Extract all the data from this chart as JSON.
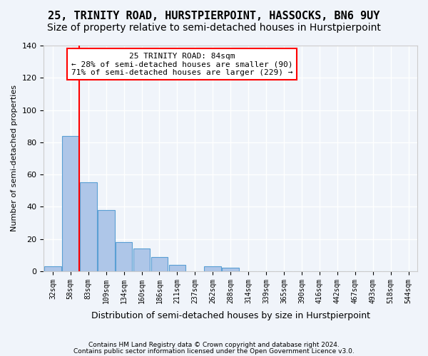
{
  "title": "25, TRINITY ROAD, HURSTPIERPOINT, HASSOCKS, BN6 9UY",
  "subtitle": "Size of property relative to semi-detached houses in Hurstpierpoint",
  "xlabel": "Distribution of semi-detached houses by size in Hurstpierpoint",
  "ylabel": "Number of semi-detached properties",
  "footnote1": "Contains HM Land Registry data © Crown copyright and database right 2024.",
  "footnote2": "Contains public sector information licensed under the Open Government Licence v3.0.",
  "bin_labels": [
    "32sqm",
    "58sqm",
    "83sqm",
    "109sqm",
    "134sqm",
    "160sqm",
    "186sqm",
    "211sqm",
    "237sqm",
    "262sqm",
    "288sqm",
    "314sqm",
    "339sqm",
    "365sqm",
    "390sqm",
    "416sqm",
    "442sqm",
    "467sqm",
    "493sqm",
    "518sqm",
    "544sqm"
  ],
  "bar_heights": [
    3,
    84,
    55,
    38,
    18,
    14,
    9,
    4,
    0,
    3,
    2,
    0,
    0,
    0,
    0,
    0,
    0,
    0,
    0,
    0,
    0
  ],
  "bar_color": "#aec6e8",
  "bar_edge_color": "#5a9fd4",
  "red_line_bin_index": 1,
  "red_line_label": "25 TRINITY ROAD: 84sqm",
  "annotation_line1": "← 28% of semi-detached houses are smaller (90)",
  "annotation_line2": "71% of semi-detached houses are larger (229) →",
  "ylim": [
    0,
    140
  ],
  "yticks": [
    0,
    20,
    40,
    60,
    80,
    100,
    120,
    140
  ],
  "background_color": "#f0f4fa",
  "grid_color": "#ffffff",
  "title_fontsize": 11,
  "subtitle_fontsize": 10
}
